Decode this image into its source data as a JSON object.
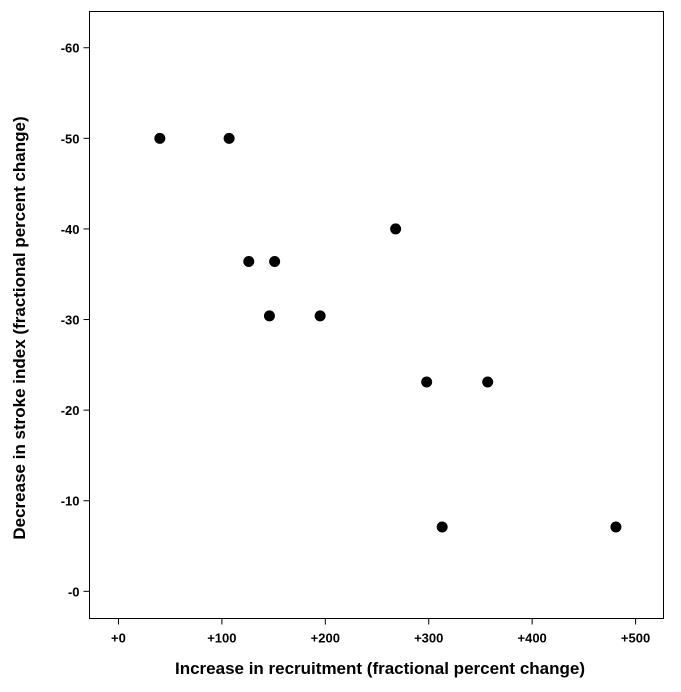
{
  "chart_data": {
    "type": "scatter",
    "title": "",
    "xlabel": "Increase in recruitment (fractional percent change)",
    "ylabel": "Decrease in stroke index (fractional percent change)",
    "xlim": [
      -28,
      527
    ],
    "ylim": [
      3,
      -64
    ],
    "y_axis_reversed": true,
    "grid": false,
    "legend": "none",
    "x_ticks": [
      {
        "value": 0,
        "label": "+0"
      },
      {
        "value": 100,
        "label": "+100"
      },
      {
        "value": 200,
        "label": "+200"
      },
      {
        "value": 300,
        "label": "+300"
      },
      {
        "value": 400,
        "label": "+400"
      },
      {
        "value": 500,
        "label": "+500"
      }
    ],
    "y_ticks": [
      {
        "value": -60,
        "label": "-60"
      },
      {
        "value": -50,
        "label": "-50"
      },
      {
        "value": -40,
        "label": "-40"
      },
      {
        "value": -30,
        "label": "-30"
      },
      {
        "value": -20,
        "label": "-20"
      },
      {
        "value": -10,
        "label": "-10"
      },
      {
        "value": 0,
        "label": "-0"
      }
    ],
    "series": [
      {
        "color": "#000000",
        "points": [
          {
            "x": 40,
            "y": -50
          },
          {
            "x": 107,
            "y": -50
          },
          {
            "x": 126,
            "y": -36.4
          },
          {
            "x": 151,
            "y": -36.4
          },
          {
            "x": 146,
            "y": -30.4
          },
          {
            "x": 195,
            "y": -30.4
          },
          {
            "x": 268,
            "y": -40
          },
          {
            "x": 298,
            "y": -23.1
          },
          {
            "x": 357,
            "y": -23.1
          },
          {
            "x": 313,
            "y": -7.1
          },
          {
            "x": 481,
            "y": -7.1
          }
        ]
      }
    ]
  }
}
